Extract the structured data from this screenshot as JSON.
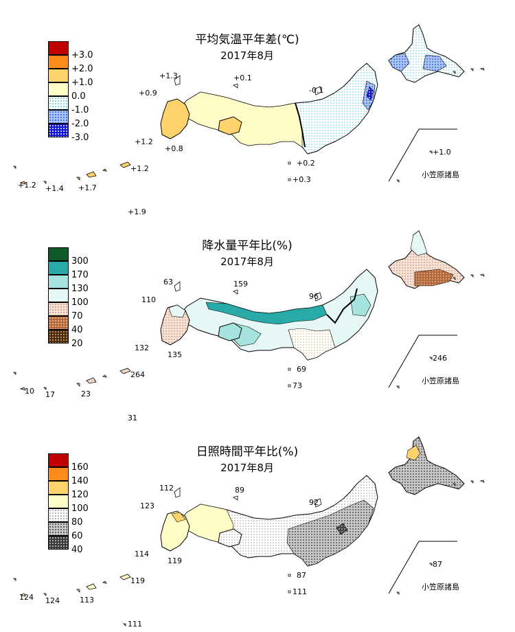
{
  "panels": [
    {
      "title": "平均気温平年差(℃)",
      "subtitle": "2017年8月",
      "legend": [
        {
          "label": "+3.0",
          "color": "#c00000",
          "pattern": "solid"
        },
        {
          "label": "+2.0",
          "color": "#ff8c1a",
          "pattern": "solid"
        },
        {
          "label": "+1.0",
          "color": "#ffd36b",
          "pattern": "solid"
        },
        {
          "label": "0.0",
          "color": "#fffcc8",
          "pattern": "solid"
        },
        {
          "label": "-1.0",
          "color": "#7fd3e8",
          "pattern": "dots-light"
        },
        {
          "label": "-2.0",
          "color": "#4a7fe6",
          "pattern": "dots"
        },
        {
          "label": "-3.0",
          "color": "#1414d2",
          "pattern": "dots-dense"
        }
      ],
      "values": [
        "+1.3",
        "+0.1",
        "+0.9",
        "-0.1",
        "+1.2",
        "+0.8",
        "+1.0",
        "+0.2",
        "+0.3",
        "+1.2",
        "+1.2",
        "+1.4",
        "+1.7",
        "+1.9"
      ],
      "inset_label": "小笠原諸島"
    },
    {
      "title": "降水量平年比(%)",
      "subtitle": "2017年8月",
      "legend": [
        {
          "label": "300",
          "color": "#0e5a2a",
          "pattern": "solid"
        },
        {
          "label": "170",
          "color": "#2aa9a9",
          "pattern": "solid"
        },
        {
          "label": "130",
          "color": "#a6e3df",
          "pattern": "solid"
        },
        {
          "label": "100",
          "color": "#e6f8f6",
          "pattern": "solid"
        },
        {
          "label": "70",
          "color": "#e9c7b4",
          "pattern": "dots-light"
        },
        {
          "label": "40",
          "color": "#b4693c",
          "pattern": "dots"
        },
        {
          "label": "20",
          "color": "#4a2a10",
          "pattern": "dots-dense"
        }
      ],
      "values": [
        "63",
        "159",
        "110",
        "96",
        "132",
        "135",
        "246",
        "69",
        "73",
        "264",
        "10",
        "17",
        "23",
        "31"
      ],
      "inset_label": "小笠原諸島"
    },
    {
      "title": "日照時間平年比(%)",
      "subtitle": "2017年8月",
      "legend": [
        {
          "label": "160",
          "color": "#c00000",
          "pattern": "solid"
        },
        {
          "label": "140",
          "color": "#ff8c1a",
          "pattern": "solid"
        },
        {
          "label": "120",
          "color": "#ffd36b",
          "pattern": "solid"
        },
        {
          "label": "100",
          "color": "#fffcc8",
          "pattern": "solid"
        },
        {
          "label": "80",
          "color": "#f0f0f0",
          "pattern": "dots-light"
        },
        {
          "label": "60",
          "color": "#9a9a9a",
          "pattern": "dots"
        },
        {
          "label": "40",
          "color": "#3a3a3a",
          "pattern": "dots-dense"
        }
      ],
      "values": [
        "112",
        "89",
        "123",
        "92",
        "114",
        "119",
        "87",
        "87",
        "111",
        "119",
        "124",
        "124",
        "113",
        "111"
      ],
      "inset_label": "小笠原諸島"
    }
  ]
}
